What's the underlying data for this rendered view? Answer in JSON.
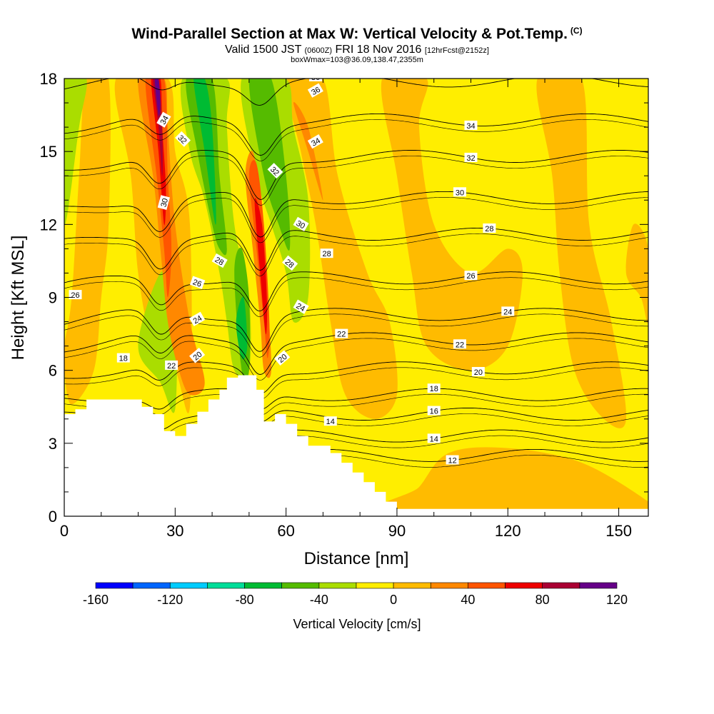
{
  "header": {
    "title": "Wind-Parallel Section at Max W: Vertical Velocity & Pot.Temp.",
    "copyright": "(C)",
    "valid_prefix": "Valid 1500 JST",
    "valid_utc": "(0600Z)",
    "valid_date": "FRI 18 Nov 2016",
    "forecast_info": "[12hrFcst@2152z]",
    "box_info": "boxWmax=103@36.09,138.47,2355m"
  },
  "chart_data": {
    "type": "heatmap",
    "xlabel": "Distance [nm]",
    "ylabel": "Height [Kft MSL]",
    "xlim": [
      0,
      158
    ],
    "ylim": [
      0,
      18
    ],
    "x_ticks": [
      "0",
      "30",
      "60",
      "90",
      "120",
      "150"
    ],
    "x_tick_values": [
      0,
      30,
      60,
      90,
      120,
      150
    ],
    "y_ticks": [
      "0",
      "3",
      "6",
      "9",
      "12",
      "15",
      "18"
    ],
    "y_tick_values": [
      0,
      3,
      6,
      9,
      12,
      15,
      18
    ],
    "colorbar": {
      "title": "Vertical Velocity [cm/s]",
      "bounds": [
        -160,
        -140,
        -120,
        -100,
        -80,
        -60,
        -40,
        -20,
        0,
        20,
        40,
        60,
        80,
        100,
        120
      ],
      "tick_labels": [
        "-160",
        "-120",
        "-80",
        "-40",
        "0",
        "40",
        "80",
        "120"
      ],
      "tick_values": [
        -160,
        -120,
        -80,
        -40,
        0,
        40,
        80,
        120
      ],
      "colors": [
        "#0000ff",
        "#0066ff",
        "#00ccff",
        "#00dd99",
        "#00bb33",
        "#55bb00",
        "#aadd00",
        "#ffee00",
        "#ffbb00",
        "#ff8800",
        "#ff5500",
        "#ee0000",
        "#aa0033",
        "#660088"
      ]
    },
    "background_color": "#ffee00",
    "velocity_bands": [
      {
        "value": 10,
        "color": "#ffbb00",
        "points": [
          [
            0,
            6
          ],
          [
            2,
            4.6
          ],
          [
            8,
            6
          ],
          [
            10,
            9
          ],
          [
            12,
            12
          ],
          [
            12,
            18
          ],
          [
            6,
            18
          ],
          [
            4,
            14
          ],
          [
            2,
            9
          ],
          [
            0,
            7
          ]
        ]
      },
      {
        "value": 10,
        "color": "#ffbb00",
        "points": [
          [
            14,
            18
          ],
          [
            18,
            14
          ],
          [
            20,
            10
          ],
          [
            24,
            7
          ],
          [
            30,
            6
          ],
          [
            34,
            4.5
          ],
          [
            34,
            12
          ],
          [
            30,
            15
          ],
          [
            28,
            18
          ]
        ]
      },
      {
        "value": 10,
        "color": "#ffbb00",
        "points": [
          [
            60,
            18
          ],
          [
            64,
            15
          ],
          [
            68,
            12
          ],
          [
            72,
            8
          ],
          [
            76,
            5
          ],
          [
            84,
            4
          ],
          [
            90,
            5
          ],
          [
            88,
            8
          ],
          [
            82,
            10
          ],
          [
            74,
            14
          ],
          [
            70,
            18
          ]
        ]
      },
      {
        "value": 10,
        "color": "#ffbb00",
        "points": [
          [
            86,
            18
          ],
          [
            90,
            14
          ],
          [
            94,
            10
          ],
          [
            98,
            7
          ],
          [
            110,
            6
          ],
          [
            120,
            7
          ],
          [
            124,
            10
          ],
          [
            120,
            11
          ],
          [
            110,
            10
          ],
          [
            100,
            12
          ],
          [
            96,
            16
          ],
          [
            98,
            18
          ]
        ]
      },
      {
        "value": 10,
        "color": "#ffbb00",
        "points": [
          [
            128,
            18
          ],
          [
            132,
            14
          ],
          [
            134,
            10
          ],
          [
            138,
            6
          ],
          [
            146,
            4
          ],
          [
            152,
            4
          ],
          [
            148,
            8
          ],
          [
            142,
            12
          ],
          [
            140,
            18
          ]
        ]
      },
      {
        "value": 10,
        "color": "#ffbb00",
        "points": [
          [
            90,
            0.3
          ],
          [
            96,
            1.2
          ],
          [
            104,
            2.6
          ],
          [
            120,
            2.8
          ],
          [
            140,
            2.2
          ],
          [
            158,
            0.6
          ],
          [
            158,
            0.3
          ]
        ]
      },
      {
        "value": 10,
        "color": "#ffbb00",
        "points": [
          [
            152,
            10
          ],
          [
            156,
            9
          ],
          [
            158,
            8
          ],
          [
            158,
            11
          ],
          [
            154,
            12
          ]
        ]
      },
      {
        "value": -10,
        "color": "#aadd00",
        "points": [
          [
            0,
            12
          ],
          [
            4,
            16
          ],
          [
            6,
            18
          ],
          [
            0,
            18
          ]
        ]
      },
      {
        "value": -10,
        "color": "#aadd00",
        "points": [
          [
            20,
            7
          ],
          [
            26,
            5.5
          ],
          [
            30,
            4.4
          ],
          [
            30,
            9
          ],
          [
            26,
            10
          ]
        ]
      },
      {
        "value": -10,
        "color": "#aadd00",
        "points": [
          [
            32,
            18
          ],
          [
            34,
            15
          ],
          [
            38,
            13
          ],
          [
            42,
            10
          ],
          [
            44,
            8
          ],
          [
            46,
            6
          ],
          [
            50,
            6
          ],
          [
            50,
            9
          ],
          [
            46,
            12
          ],
          [
            44,
            16
          ],
          [
            44,
            18
          ]
        ]
      },
      {
        "value": -10,
        "color": "#aadd00",
        "points": [
          [
            48,
            18
          ],
          [
            52,
            14
          ],
          [
            56,
            12
          ],
          [
            60,
            10
          ],
          [
            62,
            8
          ],
          [
            66,
            9
          ],
          [
            66,
            13
          ],
          [
            62,
            16
          ],
          [
            60,
            18
          ]
        ]
      },
      {
        "value": -30,
        "color": "#55bb00",
        "points": [
          [
            33,
            18
          ],
          [
            36,
            15
          ],
          [
            40,
            12
          ],
          [
            42,
            11
          ],
          [
            44,
            11
          ],
          [
            42,
            14
          ],
          [
            40,
            18
          ]
        ]
      },
      {
        "value": -30,
        "color": "#55bb00",
        "points": [
          [
            46,
            10
          ],
          [
            48,
            6
          ],
          [
            50,
            6
          ],
          [
            50,
            9
          ],
          [
            48,
            11
          ]
        ]
      },
      {
        "value": -30,
        "color": "#55bb00",
        "points": [
          [
            50,
            18
          ],
          [
            54,
            14
          ],
          [
            58,
            12
          ],
          [
            61,
            11
          ],
          [
            60,
            14
          ],
          [
            56,
            18
          ]
        ]
      },
      {
        "value": -50,
        "color": "#00bb33",
        "points": [
          [
            35,
            18
          ],
          [
            38,
            15
          ],
          [
            41,
            12
          ],
          [
            40,
            16
          ],
          [
            38,
            18
          ]
        ]
      },
      {
        "value": -50,
        "color": "#00bb33",
        "points": [
          [
            46.5,
            8
          ],
          [
            48,
            6.5
          ],
          [
            49.5,
            7
          ],
          [
            48.5,
            9
          ]
        ]
      },
      {
        "value": 30,
        "color": "#ff8800",
        "points": [
          [
            20,
            18
          ],
          [
            24,
            14
          ],
          [
            26,
            11
          ],
          [
            28,
            8
          ],
          [
            31,
            6
          ],
          [
            34,
            5
          ],
          [
            38,
            5.5
          ],
          [
            34,
            8
          ],
          [
            30,
            12
          ],
          [
            28,
            16
          ],
          [
            27,
            18
          ]
        ]
      },
      {
        "value": 30,
        "color": "#ff8800",
        "points": [
          [
            49,
            14
          ],
          [
            51,
            11
          ],
          [
            53,
            8
          ],
          [
            54,
            6
          ],
          [
            56,
            6
          ],
          [
            55,
            9
          ],
          [
            53,
            13
          ],
          [
            51,
            15
          ]
        ]
      },
      {
        "value": 30,
        "color": "#ff8800",
        "points": [
          [
            62,
            17
          ],
          [
            66,
            15
          ],
          [
            70,
            13
          ],
          [
            66,
            16
          ]
        ]
      },
      {
        "value": 50,
        "color": "#ff5500",
        "points": [
          [
            22,
            18
          ],
          [
            25,
            14
          ],
          [
            27,
            11
          ],
          [
            28,
            9
          ],
          [
            29,
            11
          ],
          [
            28,
            14
          ],
          [
            27,
            18
          ]
        ]
      },
      {
        "value": 50,
        "color": "#ff5500",
        "points": [
          [
            50,
            14
          ],
          [
            52,
            11
          ],
          [
            54,
            8
          ],
          [
            55,
            6.5
          ],
          [
            55.5,
            8
          ],
          [
            54,
            12
          ],
          [
            52,
            14.5
          ]
        ]
      },
      {
        "value": 70,
        "color": "#ee0000",
        "points": [
          [
            23.5,
            18
          ],
          [
            25.5,
            15
          ],
          [
            27,
            12
          ],
          [
            27.5,
            13.5
          ],
          [
            26.5,
            16
          ],
          [
            26,
            18
          ]
        ]
      },
      {
        "value": 70,
        "color": "#ee0000",
        "points": [
          [
            51.5,
            13
          ],
          [
            53,
            10
          ],
          [
            54.5,
            7.5
          ],
          [
            54.8,
            9
          ],
          [
            53.5,
            12
          ]
        ]
      },
      {
        "value": 90,
        "color": "#aa0033",
        "points": [
          [
            24,
            18
          ],
          [
            25.5,
            16
          ],
          [
            26.5,
            14
          ],
          [
            26.5,
            16
          ],
          [
            25.5,
            18
          ]
        ]
      },
      {
        "value": 110,
        "color": "#660088",
        "points": [
          [
            24.5,
            18
          ],
          [
            25.5,
            16.5
          ],
          [
            26,
            17
          ],
          [
            25.5,
            18
          ]
        ]
      }
    ],
    "terrain": [
      [
        0,
        4.2
      ],
      [
        3,
        4.2
      ],
      [
        3,
        4.4
      ],
      [
        6,
        4.4
      ],
      [
        6,
        4.8
      ],
      [
        21,
        4.8
      ],
      [
        21,
        4.5
      ],
      [
        24,
        4.5
      ],
      [
        24,
        4.2
      ],
      [
        27,
        4.2
      ],
      [
        27,
        3.5
      ],
      [
        30,
        3.5
      ],
      [
        30,
        3.3
      ],
      [
        33,
        3.3
      ],
      [
        33,
        3.8
      ],
      [
        36,
        3.8
      ],
      [
        36,
        4.3
      ],
      [
        39,
        4.3
      ],
      [
        39,
        4.8
      ],
      [
        42,
        4.8
      ],
      [
        42,
        5.2
      ],
      [
        44,
        5.2
      ],
      [
        44,
        5.7
      ],
      [
        47,
        5.7
      ],
      [
        47,
        5.8
      ],
      [
        52,
        5.8
      ],
      [
        52,
        5.2
      ],
      [
        54,
        5.2
      ],
      [
        54,
        3.9
      ],
      [
        57,
        3.9
      ],
      [
        57,
        4.2
      ],
      [
        60,
        4.2
      ],
      [
        60,
        3.8
      ],
      [
        63,
        3.8
      ],
      [
        63,
        3.3
      ],
      [
        66,
        3.3
      ],
      [
        66,
        2.9
      ],
      [
        72,
        2.9
      ],
      [
        72,
        2.6
      ],
      [
        75,
        2.6
      ],
      [
        75,
        2.2
      ],
      [
        78,
        2.2
      ],
      [
        78,
        1.8
      ],
      [
        81,
        1.8
      ],
      [
        81,
        1.4
      ],
      [
        84,
        1.4
      ],
      [
        84,
        1
      ],
      [
        87,
        1
      ],
      [
        87,
        0.6
      ],
      [
        90,
        0.6
      ],
      [
        90,
        0.3
      ],
      [
        158,
        0.3
      ],
      [
        158,
        0
      ]
    ],
    "isentropes": [
      {
        "label": "12",
        "y": 2.5,
        "valley": 1.4,
        "x_label": 105
      },
      {
        "label": "14",
        "y": 3.3,
        "valley": 2.5,
        "x_label": 100
      },
      {
        "label": "16",
        "y": 4.2,
        "valley": 3.4,
        "x_label": 100
      },
      {
        "label": "18",
        "y": 5.0,
        "valley": 4.0,
        "x_label": 100
      },
      {
        "label": "20",
        "y": 6.1,
        "valley": 4.8,
        "x_label": 112
      },
      {
        "label": "22",
        "y": 7.3,
        "valley": 5.6,
        "x_label": 107
      },
      {
        "label": "24",
        "y": 8.3,
        "valley": 6.4,
        "x_label": 120
      },
      {
        "label": "26",
        "y": 9.8,
        "valley": 7.8,
        "x_label": 110
      },
      {
        "label": "28",
        "y": 11.6,
        "valley": 9.2,
        "x_label": 115
      },
      {
        "label": "30",
        "y": 13.1,
        "valley": 10.6,
        "x_label": 107
      },
      {
        "label": "32",
        "y": 14.8,
        "valley": 12.4,
        "x_label": 110
      },
      {
        "label": "34",
        "y": 16.3,
        "valley": 14.6,
        "x_label": 110
      },
      {
        "label": "36",
        "y": 17.9,
        "valley": 16.8,
        "x_label": 68
      }
    ],
    "inline_labels": [
      {
        "text": "36",
        "x": 68,
        "y": 17.5,
        "angle": -30
      },
      {
        "text": "34",
        "x": 27,
        "y": 16.3,
        "angle": -60
      },
      {
        "text": "34",
        "x": 68,
        "y": 15.4,
        "angle": -30
      },
      {
        "text": "32",
        "x": 32,
        "y": 15.5,
        "angle": 45
      },
      {
        "text": "32",
        "x": 57,
        "y": 14.2,
        "angle": 45
      },
      {
        "text": "30",
        "x": 27,
        "y": 12.9,
        "angle": -75
      },
      {
        "text": "30",
        "x": 64,
        "y": 12.0,
        "angle": 30
      },
      {
        "text": "28",
        "x": 42,
        "y": 10.5,
        "angle": 30
      },
      {
        "text": "28",
        "x": 71,
        "y": 10.8,
        "angle": 0
      },
      {
        "text": "28",
        "x": 61,
        "y": 10.4,
        "angle": 40
      },
      {
        "text": "26",
        "x": 3,
        "y": 9.1,
        "angle": 0
      },
      {
        "text": "26",
        "x": 36,
        "y": 9.6,
        "angle": 20
      },
      {
        "text": "24",
        "x": 36,
        "y": 8.1,
        "angle": -30
      },
      {
        "text": "24",
        "x": 64,
        "y": 8.6,
        "angle": 30
      },
      {
        "text": "22",
        "x": 75,
        "y": 7.5,
        "angle": 0
      },
      {
        "text": "22",
        "x": 29,
        "y": 6.2,
        "angle": 0
      },
      {
        "text": "20",
        "x": 36,
        "y": 6.6,
        "angle": -40
      },
      {
        "text": "20",
        "x": 59,
        "y": 6.5,
        "angle": -40
      },
      {
        "text": "18",
        "x": 16,
        "y": 6.5,
        "angle": 0
      },
      {
        "text": "14",
        "x": 72,
        "y": 3.9,
        "angle": 0
      }
    ]
  }
}
